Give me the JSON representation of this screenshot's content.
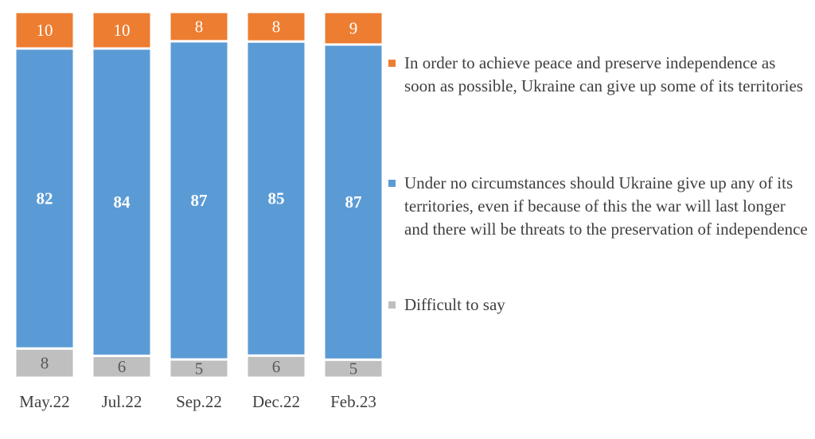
{
  "chart_data": {
    "type": "bar",
    "stacked": true,
    "normalized": true,
    "categories": [
      "May.22",
      "Jul.22",
      "Sep.22",
      "Dec.22",
      "Feb.23"
    ],
    "series": [
      {
        "name": "Difficult to say",
        "values": [
          8,
          6,
          5,
          6,
          5
        ],
        "color": "#bfbfbf",
        "label_color": "#595959",
        "label_bold": false
      },
      {
        "name": "Under no circumstances should Ukraine give up any of its territories, even if because of this the war will last longer and there will be threats to the preservation of independence",
        "values": [
          82,
          84,
          87,
          85,
          87
        ],
        "color": "#5b9bd5",
        "label_color": "#ffffff",
        "label_bold": true
      },
      {
        "name": "In order to achieve peace and preserve independence as soon as possible, Ukraine can give up some of its territories",
        "values": [
          10,
          10,
          8,
          8,
          9
        ],
        "color": "#ed7d31",
        "label_color": "#ffffff",
        "label_bold": false
      }
    ],
    "legend_position": "right",
    "grid": false
  }
}
